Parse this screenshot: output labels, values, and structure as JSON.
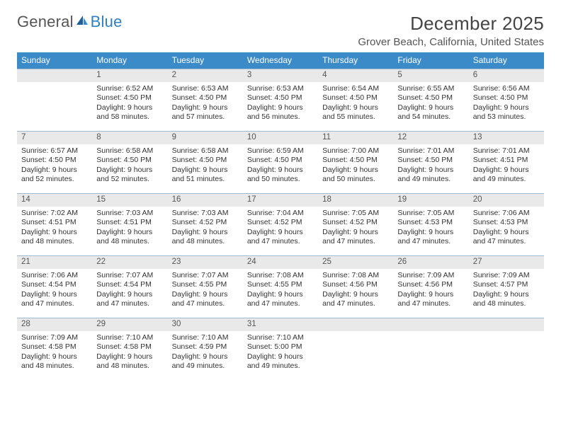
{
  "brand": {
    "word1": "General",
    "word2": "Blue"
  },
  "title": "December 2025",
  "location": "Grover Beach, California, United States",
  "colors": {
    "header_bg": "#3b8bc9",
    "header_text": "#ffffff",
    "daynum_bg": "#e9e9e9",
    "row_border": "#9fb9d0",
    "body_text": "#333333",
    "title_text": "#444444"
  },
  "day_names": [
    "Sunday",
    "Monday",
    "Tuesday",
    "Wednesday",
    "Thursday",
    "Friday",
    "Saturday"
  ],
  "weeks": [
    {
      "nums": [
        "",
        "1",
        "2",
        "3",
        "4",
        "5",
        "6"
      ],
      "cells": [
        null,
        {
          "sunrise": "Sunrise: 6:52 AM",
          "sunset": "Sunset: 4:50 PM",
          "d1": "Daylight: 9 hours",
          "d2": "and 58 minutes."
        },
        {
          "sunrise": "Sunrise: 6:53 AM",
          "sunset": "Sunset: 4:50 PM",
          "d1": "Daylight: 9 hours",
          "d2": "and 57 minutes."
        },
        {
          "sunrise": "Sunrise: 6:53 AM",
          "sunset": "Sunset: 4:50 PM",
          "d1": "Daylight: 9 hours",
          "d2": "and 56 minutes."
        },
        {
          "sunrise": "Sunrise: 6:54 AM",
          "sunset": "Sunset: 4:50 PM",
          "d1": "Daylight: 9 hours",
          "d2": "and 55 minutes."
        },
        {
          "sunrise": "Sunrise: 6:55 AM",
          "sunset": "Sunset: 4:50 PM",
          "d1": "Daylight: 9 hours",
          "d2": "and 54 minutes."
        },
        {
          "sunrise": "Sunrise: 6:56 AM",
          "sunset": "Sunset: 4:50 PM",
          "d1": "Daylight: 9 hours",
          "d2": "and 53 minutes."
        }
      ]
    },
    {
      "nums": [
        "7",
        "8",
        "9",
        "10",
        "11",
        "12",
        "13"
      ],
      "cells": [
        {
          "sunrise": "Sunrise: 6:57 AM",
          "sunset": "Sunset: 4:50 PM",
          "d1": "Daylight: 9 hours",
          "d2": "and 52 minutes."
        },
        {
          "sunrise": "Sunrise: 6:58 AM",
          "sunset": "Sunset: 4:50 PM",
          "d1": "Daylight: 9 hours",
          "d2": "and 52 minutes."
        },
        {
          "sunrise": "Sunrise: 6:58 AM",
          "sunset": "Sunset: 4:50 PM",
          "d1": "Daylight: 9 hours",
          "d2": "and 51 minutes."
        },
        {
          "sunrise": "Sunrise: 6:59 AM",
          "sunset": "Sunset: 4:50 PM",
          "d1": "Daylight: 9 hours",
          "d2": "and 50 minutes."
        },
        {
          "sunrise": "Sunrise: 7:00 AM",
          "sunset": "Sunset: 4:50 PM",
          "d1": "Daylight: 9 hours",
          "d2": "and 50 minutes."
        },
        {
          "sunrise": "Sunrise: 7:01 AM",
          "sunset": "Sunset: 4:50 PM",
          "d1": "Daylight: 9 hours",
          "d2": "and 49 minutes."
        },
        {
          "sunrise": "Sunrise: 7:01 AM",
          "sunset": "Sunset: 4:51 PM",
          "d1": "Daylight: 9 hours",
          "d2": "and 49 minutes."
        }
      ]
    },
    {
      "nums": [
        "14",
        "15",
        "16",
        "17",
        "18",
        "19",
        "20"
      ],
      "cells": [
        {
          "sunrise": "Sunrise: 7:02 AM",
          "sunset": "Sunset: 4:51 PM",
          "d1": "Daylight: 9 hours",
          "d2": "and 48 minutes."
        },
        {
          "sunrise": "Sunrise: 7:03 AM",
          "sunset": "Sunset: 4:51 PM",
          "d1": "Daylight: 9 hours",
          "d2": "and 48 minutes."
        },
        {
          "sunrise": "Sunrise: 7:03 AM",
          "sunset": "Sunset: 4:52 PM",
          "d1": "Daylight: 9 hours",
          "d2": "and 48 minutes."
        },
        {
          "sunrise": "Sunrise: 7:04 AM",
          "sunset": "Sunset: 4:52 PM",
          "d1": "Daylight: 9 hours",
          "d2": "and 47 minutes."
        },
        {
          "sunrise": "Sunrise: 7:05 AM",
          "sunset": "Sunset: 4:52 PM",
          "d1": "Daylight: 9 hours",
          "d2": "and 47 minutes."
        },
        {
          "sunrise": "Sunrise: 7:05 AM",
          "sunset": "Sunset: 4:53 PM",
          "d1": "Daylight: 9 hours",
          "d2": "and 47 minutes."
        },
        {
          "sunrise": "Sunrise: 7:06 AM",
          "sunset": "Sunset: 4:53 PM",
          "d1": "Daylight: 9 hours",
          "d2": "and 47 minutes."
        }
      ]
    },
    {
      "nums": [
        "21",
        "22",
        "23",
        "24",
        "25",
        "26",
        "27"
      ],
      "cells": [
        {
          "sunrise": "Sunrise: 7:06 AM",
          "sunset": "Sunset: 4:54 PM",
          "d1": "Daylight: 9 hours",
          "d2": "and 47 minutes."
        },
        {
          "sunrise": "Sunrise: 7:07 AM",
          "sunset": "Sunset: 4:54 PM",
          "d1": "Daylight: 9 hours",
          "d2": "and 47 minutes."
        },
        {
          "sunrise": "Sunrise: 7:07 AM",
          "sunset": "Sunset: 4:55 PM",
          "d1": "Daylight: 9 hours",
          "d2": "and 47 minutes."
        },
        {
          "sunrise": "Sunrise: 7:08 AM",
          "sunset": "Sunset: 4:55 PM",
          "d1": "Daylight: 9 hours",
          "d2": "and 47 minutes."
        },
        {
          "sunrise": "Sunrise: 7:08 AM",
          "sunset": "Sunset: 4:56 PM",
          "d1": "Daylight: 9 hours",
          "d2": "and 47 minutes."
        },
        {
          "sunrise": "Sunrise: 7:09 AM",
          "sunset": "Sunset: 4:56 PM",
          "d1": "Daylight: 9 hours",
          "d2": "and 47 minutes."
        },
        {
          "sunrise": "Sunrise: 7:09 AM",
          "sunset": "Sunset: 4:57 PM",
          "d1": "Daylight: 9 hours",
          "d2": "and 48 minutes."
        }
      ]
    },
    {
      "nums": [
        "28",
        "29",
        "30",
        "31",
        "",
        "",
        ""
      ],
      "cells": [
        {
          "sunrise": "Sunrise: 7:09 AM",
          "sunset": "Sunset: 4:58 PM",
          "d1": "Daylight: 9 hours",
          "d2": "and 48 minutes."
        },
        {
          "sunrise": "Sunrise: 7:10 AM",
          "sunset": "Sunset: 4:58 PM",
          "d1": "Daylight: 9 hours",
          "d2": "and 48 minutes."
        },
        {
          "sunrise": "Sunrise: 7:10 AM",
          "sunset": "Sunset: 4:59 PM",
          "d1": "Daylight: 9 hours",
          "d2": "and 49 minutes."
        },
        {
          "sunrise": "Sunrise: 7:10 AM",
          "sunset": "Sunset: 5:00 PM",
          "d1": "Daylight: 9 hours",
          "d2": "and 49 minutes."
        },
        null,
        null,
        null
      ]
    }
  ]
}
